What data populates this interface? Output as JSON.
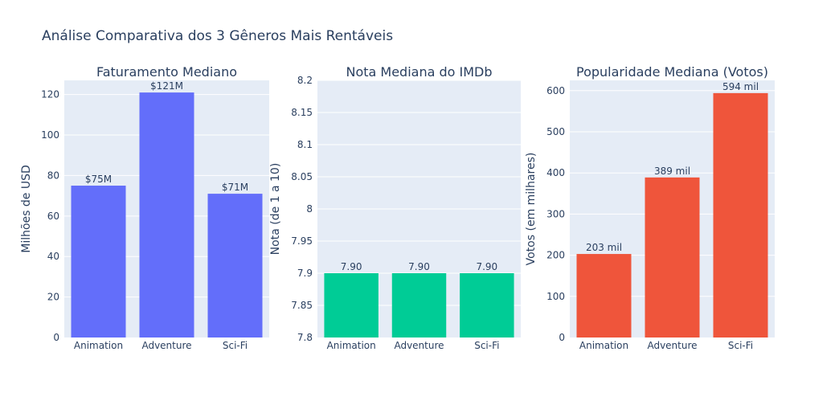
{
  "title": "Análise Comparativa dos 3 Gêneros Mais Rentáveis",
  "colors": {
    "plot_bg": "#E5ECF6",
    "grid": "#ffffff",
    "text": "#2a3f5f"
  },
  "chart_data": [
    {
      "type": "bar",
      "title": "Faturamento Mediano",
      "ylabel": "Milhões de USD",
      "xlabel": "",
      "categories": [
        "Animation",
        "Adventure",
        "Sci-Fi"
      ],
      "values": [
        75,
        121,
        71
      ],
      "data_labels": [
        "$75M",
        "$121M",
        "$71M"
      ],
      "color": "#636EFA",
      "ylim": [
        0,
        127
      ],
      "yticks": [
        0,
        20,
        40,
        60,
        80,
        100,
        120
      ],
      "ytick_labels": [
        "0",
        "20",
        "40",
        "60",
        "80",
        "100",
        "120"
      ],
      "grid": true
    },
    {
      "type": "bar",
      "title": "Nota Mediana do IMDb",
      "ylabel": "Nota (de 1 a 10)",
      "xlabel": "",
      "categories": [
        "Animation",
        "Adventure",
        "Sci-Fi"
      ],
      "values": [
        7.9,
        7.9,
        7.9
      ],
      "data_labels": [
        "7.90",
        "7.90",
        "7.90"
      ],
      "color": "#00CC96",
      "ylim": [
        7.8,
        8.2
      ],
      "yticks": [
        7.8,
        7.85,
        7.9,
        7.95,
        8.0,
        8.05,
        8.1,
        8.15,
        8.2
      ],
      "ytick_labels": [
        "7.8",
        "7.85",
        "7.9",
        "7.95",
        "8",
        "8.05",
        "8.1",
        "8.15",
        "8.2"
      ],
      "grid": true
    },
    {
      "type": "bar",
      "title": "Popularidade Mediana (Votos)",
      "ylabel": "Votos (em milhares)",
      "xlabel": "",
      "categories": [
        "Animation",
        "Adventure",
        "Sci-Fi"
      ],
      "values": [
        203,
        389,
        594
      ],
      "data_labels": [
        "203 mil",
        "389 mil",
        "594 mil"
      ],
      "color": "#EF553B",
      "ylim": [
        0,
        625
      ],
      "yticks": [
        0,
        100,
        200,
        300,
        400,
        500,
        600
      ],
      "ytick_labels": [
        "0",
        "100",
        "200",
        "300",
        "400",
        "500",
        "600"
      ],
      "grid": true
    }
  ]
}
